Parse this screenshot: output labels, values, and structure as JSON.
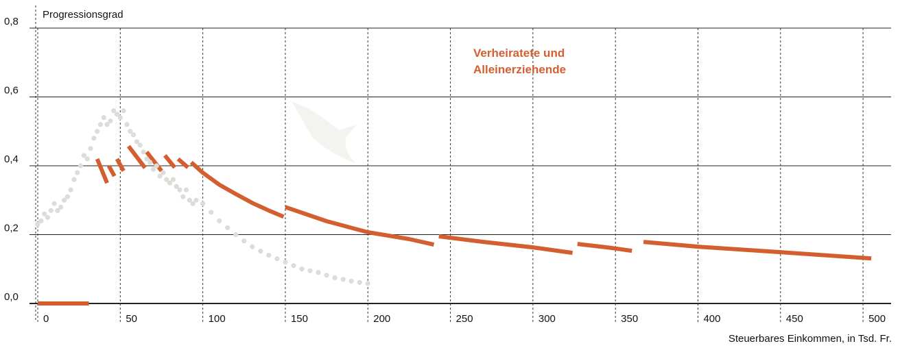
{
  "chart_data": {
    "type": "line",
    "y_axis_title": "Progressionsgrad",
    "x_axis_title": "Steuerbares Einkommen, in Tsd. Fr.",
    "xlim": [
      -5,
      517
    ],
    "ylim": [
      0,
      0.8
    ],
    "xticks": [
      0,
      50,
      100,
      150,
      200,
      250,
      300,
      350,
      400,
      450,
      500
    ],
    "yticks": [
      {
        "value": 0,
        "label": "0,0"
      },
      {
        "value": 0.2,
        "label": "0,2"
      },
      {
        "value": 0.4,
        "label": "0,4"
      },
      {
        "value": 0.6,
        "label": "0,6"
      },
      {
        "value": 0.8,
        "label": "0,8"
      }
    ],
    "grid": true,
    "series": [
      {
        "name": "Verheiratete und Alleinerziehende",
        "color": "#d35f30",
        "style": "line",
        "x": [
          0,
          31,
          null,
          36,
          42,
          null,
          43,
          46.5,
          null,
          48,
          52,
          null,
          55,
          65,
          null,
          66,
          75,
          null,
          77,
          83,
          null,
          85,
          91,
          null,
          93,
          100,
          110,
          120,
          130,
          140,
          149,
          null,
          150,
          175,
          200,
          225,
          240,
          null,
          243,
          270,
          300,
          324,
          null,
          327,
          345,
          360,
          null,
          367,
          400,
          450,
          505
        ],
        "values": [
          0,
          0,
          null,
          0.42,
          0.35,
          null,
          0.4,
          0.37,
          null,
          0.42,
          0.385,
          null,
          0.457,
          0.394,
          null,
          0.44,
          0.385,
          null,
          0.43,
          0.395,
          null,
          0.42,
          0.395,
          null,
          0.41,
          0.38,
          0.345,
          0.318,
          0.292,
          0.27,
          0.252,
          null,
          0.28,
          0.239,
          0.207,
          0.187,
          0.171,
          null,
          0.195,
          0.179,
          0.163,
          0.147,
          null,
          0.173,
          0.163,
          0.153,
          null,
          0.179,
          0.165,
          0.149,
          0.131
        ]
      },
      {
        "color": "#dcdcd8",
        "style": "dots",
        "x": [
          0,
          2,
          4,
          6,
          8,
          10,
          12,
          14,
          16,
          18,
          20,
          22,
          24,
          26,
          28,
          30,
          32,
          34,
          36,
          38,
          40,
          42,
          44,
          46,
          48,
          50,
          52,
          54,
          56,
          58,
          60,
          62,
          64,
          66,
          68,
          70,
          72,
          74,
          76,
          78,
          80,
          82,
          84,
          86,
          88,
          90,
          92,
          94,
          96,
          100,
          105,
          110,
          115,
          120,
          125,
          130,
          135,
          140,
          145,
          150,
          155,
          160,
          165,
          170,
          175,
          180,
          185,
          190,
          195,
          200
        ],
        "values": [
          0.23,
          0.24,
          0.26,
          0.25,
          0.27,
          0.29,
          0.27,
          0.28,
          0.3,
          0.31,
          0.33,
          0.36,
          0.38,
          0.4,
          0.43,
          0.42,
          0.45,
          0.48,
          0.5,
          0.52,
          0.54,
          0.52,
          0.53,
          0.56,
          0.55,
          0.54,
          0.56,
          0.52,
          0.5,
          0.49,
          0.47,
          0.46,
          0.44,
          0.42,
          0.41,
          0.39,
          0.4,
          0.37,
          0.38,
          0.36,
          0.35,
          0.36,
          0.34,
          0.33,
          0.31,
          0.33,
          0.3,
          0.29,
          0.3,
          0.29,
          0.265,
          0.24,
          0.22,
          0.2,
          0.182,
          0.165,
          0.152,
          0.14,
          0.13,
          0.12,
          0.11,
          0.1,
          0.095,
          0.09,
          0.082,
          0.075,
          0.07,
          0.065,
          0.061,
          0.058
        ]
      }
    ]
  }
}
